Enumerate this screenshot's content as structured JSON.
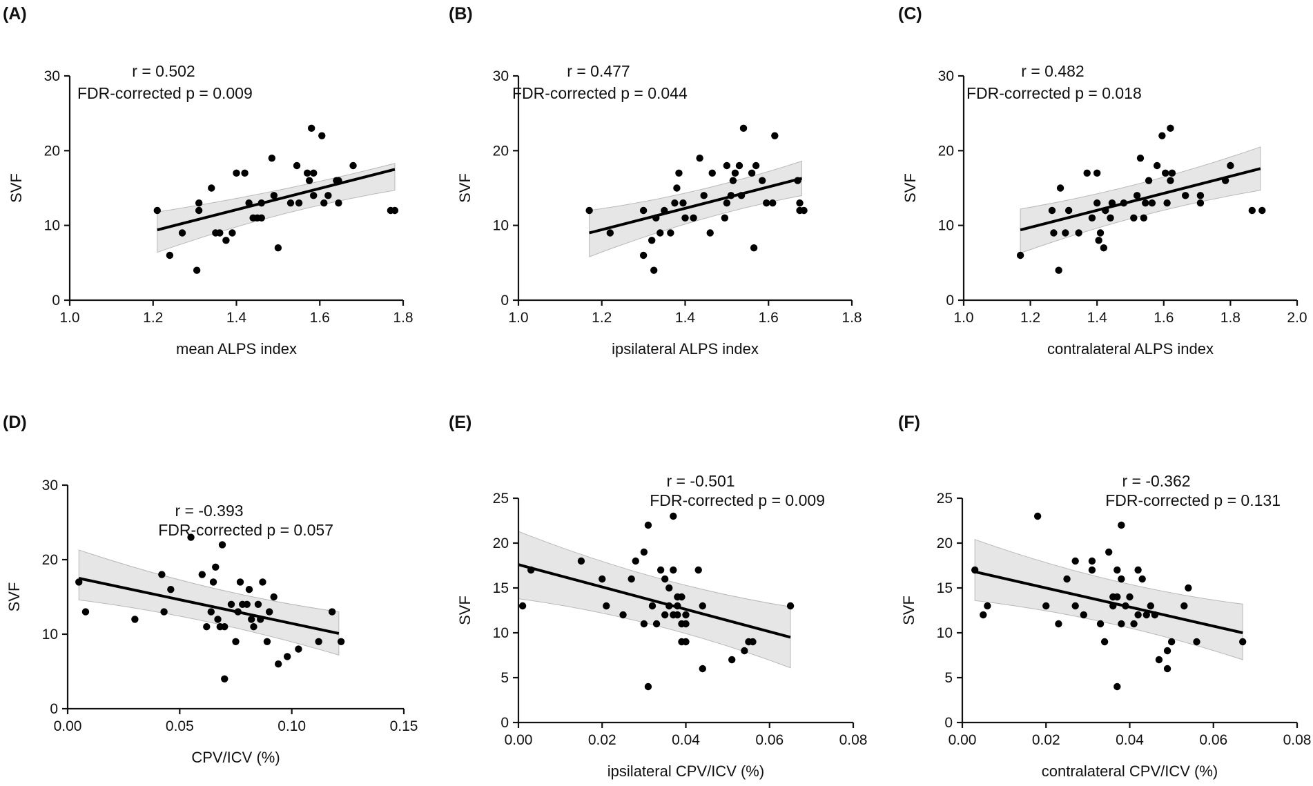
{
  "chart_data": [
    {
      "type": "scatter",
      "panel_label": "(A)",
      "xlabel": "mean ALPS index",
      "ylabel": "SVF",
      "xlim": [
        1.0,
        1.8
      ],
      "ylim": [
        0,
        30
      ],
      "x_ticks": [
        "1.0",
        "1.2",
        "1.4",
        "1.6",
        "1.8"
      ],
      "y_ticks": [
        "0",
        "10",
        "20",
        "30"
      ],
      "annotation": [
        "r = 0.502",
        "FDR-corrected p = 0.009"
      ],
      "fit": {
        "x0": 1.21,
        "y0": 9.4,
        "x1": 1.78,
        "y1": 17.5
      },
      "band": {
        "upper": [
          11.8,
          18.3
        ],
        "lower": [
          6.4,
          14.7
        ]
      },
      "points": [
        [
          1.21,
          12
        ],
        [
          1.24,
          6
        ],
        [
          1.27,
          9
        ],
        [
          1.305,
          4
        ],
        [
          1.31,
          13
        ],
        [
          1.31,
          12
        ],
        [
          1.34,
          15
        ],
        [
          1.35,
          9
        ],
        [
          1.36,
          9
        ],
        [
          1.375,
          8
        ],
        [
          1.39,
          9
        ],
        [
          1.4,
          17
        ],
        [
          1.42,
          17
        ],
        [
          1.43,
          13
        ],
        [
          1.44,
          11
        ],
        [
          1.45,
          11
        ],
        [
          1.46,
          13
        ],
        [
          1.46,
          11
        ],
        [
          1.485,
          19
        ],
        [
          1.49,
          14
        ],
        [
          1.5,
          7
        ],
        [
          1.53,
          13
        ],
        [
          1.545,
          18
        ],
        [
          1.55,
          13
        ],
        [
          1.57,
          17
        ],
        [
          1.575,
          16
        ],
        [
          1.58,
          23
        ],
        [
          1.585,
          17
        ],
        [
          1.585,
          14
        ],
        [
          1.605,
          22
        ],
        [
          1.61,
          13
        ],
        [
          1.62,
          14
        ],
        [
          1.64,
          16
        ],
        [
          1.645,
          16
        ],
        [
          1.645,
          13
        ],
        [
          1.68,
          18
        ],
        [
          1.77,
          12
        ],
        [
          1.78,
          12
        ]
      ]
    },
    {
      "type": "scatter",
      "panel_label": "(B)",
      "xlabel": "ipsilateral ALPS index",
      "ylabel": "SVF",
      "xlim": [
        1.0,
        1.8
      ],
      "ylim": [
        0,
        30
      ],
      "x_ticks": [
        "1.0",
        "1.2",
        "1.4",
        "1.6",
        "1.8"
      ],
      "y_ticks": [
        "0",
        "10",
        "20",
        "30"
      ],
      "annotation": [
        "r = 0.477",
        "FDR-corrected p = 0.044"
      ],
      "fit": {
        "x0": 1.17,
        "y0": 9.0,
        "x1": 1.68,
        "y1": 16.3
      },
      "band": {
        "upper": [
          12.0,
          18.6
        ],
        "lower": [
          5.8,
          14.0
        ]
      },
      "points": [
        [
          1.17,
          12
        ],
        [
          1.22,
          9
        ],
        [
          1.3,
          12
        ],
        [
          1.3,
          6
        ],
        [
          1.32,
          8
        ],
        [
          1.325,
          4
        ],
        [
          1.33,
          11
        ],
        [
          1.34,
          9
        ],
        [
          1.35,
          12
        ],
        [
          1.365,
          9
        ],
        [
          1.375,
          13
        ],
        [
          1.38,
          15
        ],
        [
          1.385,
          17
        ],
        [
          1.395,
          13
        ],
        [
          1.4,
          11
        ],
        [
          1.42,
          11
        ],
        [
          1.435,
          19
        ],
        [
          1.445,
          14
        ],
        [
          1.46,
          9
        ],
        [
          1.465,
          17
        ],
        [
          1.495,
          11
        ],
        [
          1.5,
          13
        ],
        [
          1.5,
          18
        ],
        [
          1.51,
          14
        ],
        [
          1.515,
          16
        ],
        [
          1.52,
          17
        ],
        [
          1.53,
          18
        ],
        [
          1.535,
          14
        ],
        [
          1.54,
          23
        ],
        [
          1.56,
          17
        ],
        [
          1.565,
          7
        ],
        [
          1.57,
          18
        ],
        [
          1.585,
          16
        ],
        [
          1.595,
          13
        ],
        [
          1.61,
          13
        ],
        [
          1.615,
          22
        ],
        [
          1.67,
          16
        ],
        [
          1.675,
          12
        ],
        [
          1.675,
          13
        ],
        [
          1.685,
          12
        ]
      ]
    },
    {
      "type": "scatter",
      "panel_label": "(C)",
      "xlabel": "contralateral ALPS index",
      "ylabel": "SVF",
      "xlim": [
        1.0,
        2.0
      ],
      "ylim": [
        0,
        30
      ],
      "x_ticks": [
        "1.0",
        "1.2",
        "1.4",
        "1.6",
        "1.8",
        "2.0"
      ],
      "y_ticks": [
        "0",
        "10",
        "20",
        "30"
      ],
      "annotation": [
        "r = 0.482",
        "FDR-corrected p = 0.018"
      ],
      "fit": {
        "x0": 1.17,
        "y0": 9.4,
        "x1": 1.89,
        "y1": 17.6
      },
      "band": {
        "upper": [
          12.2,
          20.5
        ],
        "lower": [
          6.3,
          14.7
        ]
      },
      "points": [
        [
          1.17,
          6
        ],
        [
          1.265,
          12
        ],
        [
          1.27,
          9
        ],
        [
          1.285,
          4
        ],
        [
          1.29,
          15
        ],
        [
          1.305,
          9
        ],
        [
          1.315,
          12
        ],
        [
          1.345,
          9
        ],
        [
          1.37,
          17
        ],
        [
          1.385,
          11
        ],
        [
          1.4,
          17
        ],
        [
          1.4,
          13
        ],
        [
          1.405,
          8
        ],
        [
          1.41,
          9
        ],
        [
          1.42,
          7
        ],
        [
          1.425,
          12
        ],
        [
          1.44,
          11
        ],
        [
          1.445,
          13
        ],
        [
          1.48,
          13
        ],
        [
          1.51,
          11
        ],
        [
          1.52,
          14
        ],
        [
          1.53,
          19
        ],
        [
          1.54,
          11
        ],
        [
          1.545,
          13
        ],
        [
          1.555,
          16
        ],
        [
          1.565,
          13
        ],
        [
          1.58,
          18
        ],
        [
          1.595,
          22
        ],
        [
          1.605,
          17
        ],
        [
          1.61,
          13
        ],
        [
          1.62,
          23
        ],
        [
          1.62,
          16
        ],
        [
          1.625,
          17
        ],
        [
          1.665,
          14
        ],
        [
          1.71,
          13
        ],
        [
          1.71,
          14
        ],
        [
          1.785,
          16
        ],
        [
          1.8,
          18
        ],
        [
          1.865,
          12
        ],
        [
          1.895,
          12
        ]
      ]
    },
    {
      "type": "scatter",
      "panel_label": "(D)",
      "xlabel": "CPV/ICV (%)",
      "ylabel": "SVF",
      "xlim": [
        0.0,
        0.15
      ],
      "ylim": [
        0,
        30
      ],
      "x_ticks": [
        "0.00",
        "0.05",
        "0.10",
        "0.15"
      ],
      "y_ticks": [
        "0",
        "10",
        "20",
        "30"
      ],
      "annotation": [
        "r = -0.393",
        "FDR-corrected p = 0.057"
      ],
      "fit": {
        "x0": 0.005,
        "y0": 17.5,
        "x1": 0.121,
        "y1": 10.1
      },
      "band": {
        "upper": [
          21.3,
          13.0
        ],
        "lower": [
          14.6,
          7.2
        ]
      },
      "points": [
        [
          0.005,
          17
        ],
        [
          0.008,
          13
        ],
        [
          0.03,
          12
        ],
        [
          0.042,
          18
        ],
        [
          0.043,
          13
        ],
        [
          0.046,
          16
        ],
        [
          0.055,
          23
        ],
        [
          0.06,
          18
        ],
        [
          0.062,
          11
        ],
        [
          0.064,
          13
        ],
        [
          0.065,
          17
        ],
        [
          0.066,
          19
        ],
        [
          0.067,
          12
        ],
        [
          0.068,
          11
        ],
        [
          0.069,
          22
        ],
        [
          0.07,
          11
        ],
        [
          0.07,
          4
        ],
        [
          0.073,
          14
        ],
        [
          0.075,
          9
        ],
        [
          0.076,
          13
        ],
        [
          0.077,
          17
        ],
        [
          0.078,
          14
        ],
        [
          0.08,
          14
        ],
        [
          0.081,
          16
        ],
        [
          0.082,
          12
        ],
        [
          0.083,
          11
        ],
        [
          0.085,
          14
        ],
        [
          0.086,
          12
        ],
        [
          0.087,
          17
        ],
        [
          0.089,
          9
        ],
        [
          0.09,
          13
        ],
        [
          0.092,
          15
        ],
        [
          0.094,
          6
        ],
        [
          0.098,
          7
        ],
        [
          0.103,
          8
        ],
        [
          0.112,
          9
        ],
        [
          0.118,
          13
        ],
        [
          0.122,
          9
        ]
      ]
    },
    {
      "type": "scatter",
      "panel_label": "(E)",
      "xlabel": "ipsilateral CPV/ICV (%)",
      "ylabel": "SVF",
      "xlim": [
        0.0,
        0.08
      ],
      "ylim": [
        0,
        25
      ],
      "x_ticks": [
        "0.00",
        "0.02",
        "0.04",
        "0.06",
        "0.08"
      ],
      "y_ticks": [
        "0",
        "5",
        "10",
        "15",
        "20",
        "25"
      ],
      "annotation": [
        "r = -0.501",
        "FDR-corrected p = 0.009"
      ],
      "fit": {
        "x0": 0.0,
        "y0": 17.6,
        "x1": 0.065,
        "y1": 9.5
      },
      "band": {
        "upper": [
          21.3,
          12.9
        ],
        "lower": [
          13.8,
          6.1
        ]
      },
      "points": [
        [
          0.001,
          13
        ],
        [
          0.003,
          17
        ],
        [
          0.015,
          18
        ],
        [
          0.02,
          16
        ],
        [
          0.021,
          13
        ],
        [
          0.025,
          12
        ],
        [
          0.027,
          16
        ],
        [
          0.028,
          18
        ],
        [
          0.03,
          11
        ],
        [
          0.03,
          19
        ],
        [
          0.031,
          22
        ],
        [
          0.031,
          4
        ],
        [
          0.032,
          13
        ],
        [
          0.033,
          11
        ],
        [
          0.034,
          17
        ],
        [
          0.035,
          12
        ],
        [
          0.035,
          16
        ],
        [
          0.036,
          15
        ],
        [
          0.036,
          13
        ],
        [
          0.037,
          17
        ],
        [
          0.037,
          23
        ],
        [
          0.037,
          12
        ],
        [
          0.038,
          14
        ],
        [
          0.038,
          13
        ],
        [
          0.038,
          12
        ],
        [
          0.039,
          14
        ],
        [
          0.039,
          11
        ],
        [
          0.039,
          9
        ],
        [
          0.04,
          11
        ],
        [
          0.04,
          12
        ],
        [
          0.04,
          9
        ],
        [
          0.043,
          17
        ],
        [
          0.044,
          13
        ],
        [
          0.044,
          6
        ],
        [
          0.051,
          7
        ],
        [
          0.054,
          8
        ],
        [
          0.055,
          9
        ],
        [
          0.056,
          9
        ],
        [
          0.065,
          13
        ]
      ]
    },
    {
      "type": "scatter",
      "panel_label": "(F)",
      "xlabel": "contralateral CPV/ICV (%)",
      "ylabel": "SVF",
      "xlim": [
        0.0,
        0.08
      ],
      "ylim": [
        0,
        25
      ],
      "x_ticks": [
        "0.00",
        "0.02",
        "0.04",
        "0.06",
        "0.08"
      ],
      "y_ticks": [
        "0",
        "5",
        "10",
        "15",
        "20",
        "25"
      ],
      "annotation": [
        "r = -0.362",
        "FDR-corrected p = 0.131"
      ],
      "fit": {
        "x0": 0.003,
        "y0": 16.8,
        "x1": 0.067,
        "y1": 10.0
      },
      "band": {
        "upper": [
          20.4,
          13.2
        ],
        "lower": [
          13.6,
          7.0
        ]
      },
      "points": [
        [
          0.003,
          17
        ],
        [
          0.005,
          12
        ],
        [
          0.006,
          13
        ],
        [
          0.018,
          23
        ],
        [
          0.02,
          13
        ],
        [
          0.023,
          11
        ],
        [
          0.025,
          16
        ],
        [
          0.027,
          13
        ],
        [
          0.027,
          18
        ],
        [
          0.029,
          12
        ],
        [
          0.031,
          17
        ],
        [
          0.031,
          18
        ],
        [
          0.033,
          11
        ],
        [
          0.034,
          9
        ],
        [
          0.035,
          19
        ],
        [
          0.036,
          14
        ],
        [
          0.036,
          13
        ],
        [
          0.037,
          14
        ],
        [
          0.037,
          4
        ],
        [
          0.037,
          17
        ],
        [
          0.038,
          22
        ],
        [
          0.038,
          16
        ],
        [
          0.038,
          11
        ],
        [
          0.039,
          13
        ],
        [
          0.04,
          14
        ],
        [
          0.041,
          11
        ],
        [
          0.042,
          17
        ],
        [
          0.042,
          12
        ],
        [
          0.043,
          16
        ],
        [
          0.044,
          12
        ],
        [
          0.045,
          13
        ],
        [
          0.046,
          12
        ],
        [
          0.047,
          7
        ],
        [
          0.049,
          8
        ],
        [
          0.049,
          6
        ],
        [
          0.05,
          9
        ],
        [
          0.053,
          13
        ],
        [
          0.054,
          15
        ],
        [
          0.056,
          9
        ],
        [
          0.067,
          9
        ]
      ]
    }
  ]
}
